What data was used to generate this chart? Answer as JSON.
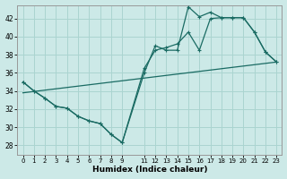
{
  "xlabel": "Humidex (Indice chaleur)",
  "background_color": "#cce9e7",
  "grid_color": "#aad4d0",
  "line_color": "#1a6b63",
  "xlim": [
    -0.5,
    23.5
  ],
  "ylim": [
    27,
    43.5
  ],
  "yticks": [
    28,
    30,
    32,
    34,
    36,
    38,
    40,
    42
  ],
  "xticks": [
    0,
    1,
    2,
    3,
    4,
    5,
    6,
    7,
    8,
    9,
    11,
    12,
    13,
    14,
    15,
    16,
    17,
    18,
    19,
    20,
    21,
    22,
    23
  ],
  "xtick_labels": [
    "0",
    "1",
    "2",
    "3",
    "4",
    "5",
    "6",
    "7",
    "8",
    "9",
    "11",
    "12",
    "13",
    "14",
    "15",
    "16",
    "17",
    "18",
    "19",
    "20",
    "21",
    "22",
    "23"
  ],
  "series1_x": [
    0,
    1,
    2,
    3,
    4,
    5,
    6,
    7,
    8,
    9,
    11,
    12,
    13,
    14,
    15,
    16,
    17,
    18,
    19,
    20,
    21,
    22,
    23
  ],
  "series1_y": [
    35.0,
    34.0,
    33.2,
    32.3,
    32.1,
    31.2,
    30.7,
    30.4,
    29.2,
    28.3,
    36.0,
    39.0,
    38.5,
    38.5,
    43.3,
    42.2,
    42.7,
    42.1,
    42.1,
    42.1,
    40.5,
    38.3,
    37.2
  ],
  "series2_x": [
    0,
    1,
    2,
    3,
    4,
    5,
    6,
    7,
    8,
    9,
    11,
    12,
    13,
    14,
    15,
    16,
    17,
    18,
    19,
    20,
    21,
    22,
    23
  ],
  "series2_y": [
    35.0,
    34.0,
    33.2,
    32.3,
    32.1,
    31.2,
    30.7,
    30.4,
    29.2,
    28.3,
    36.5,
    38.5,
    38.8,
    39.2,
    40.5,
    38.5,
    42.0,
    42.1,
    42.1,
    42.1,
    40.5,
    38.3,
    37.2
  ],
  "series3_x": [
    0,
    23
  ],
  "series3_y": [
    33.8,
    37.2
  ]
}
